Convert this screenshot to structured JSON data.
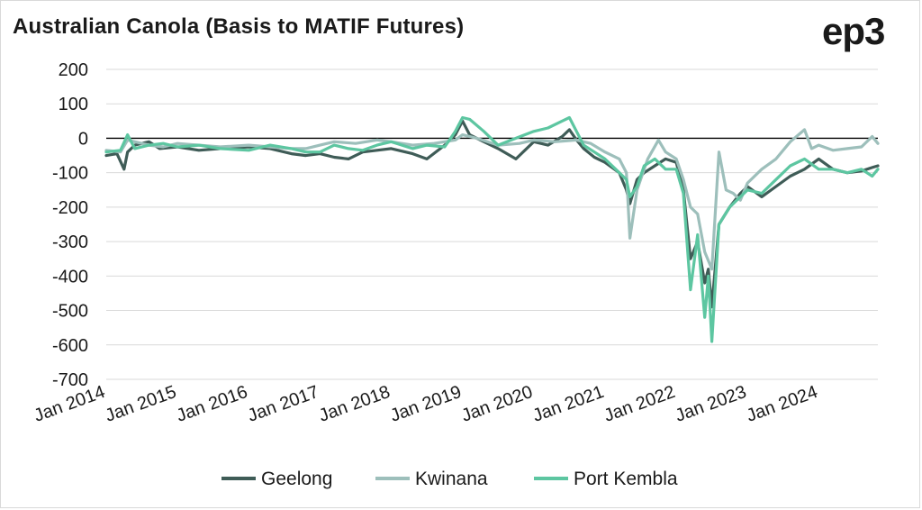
{
  "title": "Australian Canola (Basis to MATIF Futures)",
  "logo_text": "ep3",
  "chart_data": {
    "type": "line",
    "title": "Australian Canola (Basis to MATIF Futures)",
    "xlabel": "",
    "ylabel": "",
    "ylim": [
      -700,
      200
    ],
    "yticks": [
      200,
      100,
      0,
      -100,
      -200,
      -300,
      -400,
      -500,
      -600,
      -700
    ],
    "xlim": [
      2014.0,
      2024.83
    ],
    "xticks": [
      {
        "x": 2014,
        "label": "Jan 2014"
      },
      {
        "x": 2015,
        "label": "Jan 2015"
      },
      {
        "x": 2016,
        "label": "Jan 2016"
      },
      {
        "x": 2017,
        "label": "Jan 2017"
      },
      {
        "x": 2018,
        "label": "Jan 2018"
      },
      {
        "x": 2019,
        "label": "Jan 2019"
      },
      {
        "x": 2020,
        "label": "Jan 2020"
      },
      {
        "x": 2021,
        "label": "Jan 2021"
      },
      {
        "x": 2022,
        "label": "Jan 2022"
      },
      {
        "x": 2023,
        "label": "Jan 2023"
      },
      {
        "x": 2024,
        "label": "Jan 2024"
      }
    ],
    "grid": "horizontal",
    "legend_position": "bottom",
    "series": [
      {
        "name": "Geelong",
        "color": "#3f5c57",
        "x": [
          2014.0,
          2014.15,
          2014.25,
          2014.3,
          2014.4,
          2014.6,
          2014.75,
          2015.0,
          2015.3,
          2015.6,
          2016.0,
          2016.3,
          2016.6,
          2016.8,
          2017.0,
          2017.2,
          2017.4,
          2017.6,
          2017.8,
          2018.0,
          2018.3,
          2018.5,
          2018.75,
          2018.9,
          2019.0,
          2019.1,
          2019.3,
          2019.5,
          2019.75,
          2020.0,
          2020.2,
          2020.4,
          2020.5,
          2020.6,
          2020.7,
          2020.85,
          2021.0,
          2021.2,
          2021.3,
          2021.35,
          2021.45,
          2021.55,
          2021.7,
          2021.85,
          2022.0,
          2022.1,
          2022.2,
          2022.3,
          2022.4,
          2022.45,
          2022.5,
          2022.6,
          2022.75,
          2022.9,
          2023.0,
          2023.2,
          2023.4,
          2023.6,
          2023.8,
          2024.0,
          2024.2,
          2024.4,
          2024.6,
          2024.75,
          2024.83
        ],
        "y": [
          -50,
          -45,
          -90,
          -40,
          -20,
          -10,
          -30,
          -25,
          -35,
          -30,
          -25,
          -30,
          -45,
          -50,
          -45,
          -55,
          -60,
          -40,
          -35,
          -30,
          -45,
          -60,
          -20,
          10,
          50,
          10,
          -10,
          -30,
          -60,
          -10,
          -20,
          5,
          25,
          -5,
          -30,
          -55,
          -70,
          -100,
          -150,
          -190,
          -120,
          -100,
          -80,
          -60,
          -70,
          -150,
          -350,
          -300,
          -420,
          -380,
          -490,
          -250,
          -200,
          -160,
          -140,
          -170,
          -140,
          -110,
          -90,
          -60,
          -90,
          -100,
          -95,
          -85,
          -80
        ]
      },
      {
        "name": "Kwinana",
        "color": "#9dbfbb",
        "x": [
          2014.0,
          2014.2,
          2014.3,
          2014.4,
          2014.6,
          2014.8,
          2015.0,
          2015.3,
          2015.6,
          2016.0,
          2016.3,
          2016.6,
          2016.8,
          2017.0,
          2017.2,
          2017.5,
          2017.8,
          2018.0,
          2018.3,
          2018.6,
          2018.9,
          2019.0,
          2019.2,
          2019.5,
          2019.8,
          2020.0,
          2020.3,
          2020.6,
          2020.8,
          2021.0,
          2021.2,
          2021.3,
          2021.35,
          2021.45,
          2021.6,
          2021.75,
          2021.85,
          2022.0,
          2022.1,
          2022.2,
          2022.3,
          2022.4,
          2022.5,
          2022.6,
          2022.7,
          2022.8,
          2022.9,
          2023.0,
          2023.2,
          2023.4,
          2023.6,
          2023.8,
          2023.9,
          2024.0,
          2024.2,
          2024.4,
          2024.6,
          2024.75,
          2024.83
        ],
        "y": [
          -35,
          -40,
          -5,
          -10,
          -20,
          -25,
          -15,
          -20,
          -25,
          -20,
          -25,
          -30,
          -30,
          -20,
          -10,
          -15,
          -5,
          -10,
          -20,
          -15,
          -5,
          10,
          0,
          -20,
          -15,
          -5,
          -10,
          -5,
          -15,
          -40,
          -60,
          -100,
          -290,
          -150,
          -60,
          -5,
          -40,
          -60,
          -120,
          -200,
          -220,
          -330,
          -380,
          -40,
          -150,
          -160,
          -180,
          -130,
          -90,
          -60,
          -10,
          25,
          -30,
          -20,
          -35,
          -30,
          -25,
          5,
          -15
        ]
      },
      {
        "name": "Port Kembla",
        "color": "#5dc6a1",
        "x": [
          2014.0,
          2014.2,
          2014.3,
          2014.4,
          2014.6,
          2014.8,
          2015.0,
          2015.3,
          2015.6,
          2016.0,
          2016.3,
          2016.6,
          2016.8,
          2017.0,
          2017.2,
          2017.4,
          2017.6,
          2017.8,
          2018.0,
          2018.3,
          2018.5,
          2018.75,
          2018.9,
          2019.0,
          2019.1,
          2019.3,
          2019.5,
          2019.75,
          2020.0,
          2020.2,
          2020.4,
          2020.5,
          2020.6,
          2020.7,
          2020.85,
          2021.0,
          2021.15,
          2021.3,
          2021.35,
          2021.45,
          2021.55,
          2021.7,
          2021.85,
          2022.0,
          2022.1,
          2022.2,
          2022.3,
          2022.4,
          2022.45,
          2022.5,
          2022.6,
          2022.75,
          2022.9,
          2023.0,
          2023.2,
          2023.4,
          2023.6,
          2023.8,
          2024.0,
          2024.2,
          2024.4,
          2024.6,
          2024.75,
          2024.83
        ],
        "y": [
          -40,
          -35,
          10,
          -30,
          -20,
          -15,
          -25,
          -20,
          -30,
          -35,
          -20,
          -30,
          -40,
          -40,
          -20,
          -30,
          -35,
          -20,
          -10,
          -30,
          -20,
          -25,
          20,
          60,
          55,
          20,
          -20,
          0,
          20,
          30,
          50,
          60,
          20,
          -20,
          -40,
          -60,
          -90,
          -120,
          -170,
          -140,
          -80,
          -60,
          -90,
          -90,
          -160,
          -440,
          -280,
          -520,
          -400,
          -590,
          -250,
          -200,
          -170,
          -150,
          -160,
          -120,
          -80,
          -60,
          -90,
          -90,
          -100,
          -90,
          -110,
          -90
        ]
      }
    ]
  }
}
